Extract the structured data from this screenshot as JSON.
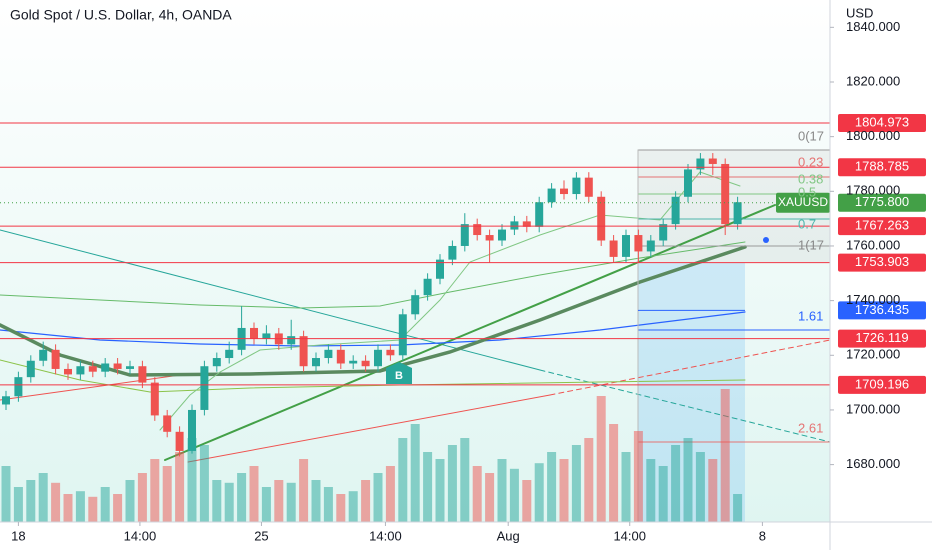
{
  "chart_data": {
    "type": "candlestick",
    "title": "Gold Spot / U.S. Dollar, 4h, OANDA",
    "y_axis_label": "USD",
    "ylim": [
      1659,
      1850
    ],
    "yticks": [
      {
        "value": 1680,
        "label": "1680.000"
      },
      {
        "value": 1700,
        "label": "1700.000"
      },
      {
        "value": 1720,
        "label": "1720.000"
      },
      {
        "value": 1740,
        "label": "1740.000"
      },
      {
        "value": 1760,
        "label": "1760.000"
      },
      {
        "value": 1780,
        "label": "1780.000"
      },
      {
        "value": 1800,
        "label": "1800.000"
      },
      {
        "value": 1820,
        "label": "1820.000"
      },
      {
        "value": 1840,
        "label": "1840.000"
      }
    ],
    "xticks": [
      {
        "value": 1,
        "label": "18"
      },
      {
        "value": 10.8,
        "label": "14:00"
      },
      {
        "value": 20.6,
        "label": "25"
      },
      {
        "value": 30.6,
        "label": "14:00"
      },
      {
        "value": 40.5,
        "label": "Aug"
      },
      {
        "value": 50.3,
        "label": "14:00"
      },
      {
        "value": 61,
        "label": "8"
      }
    ],
    "open": [
      1702,
      1705,
      1712,
      1718,
      1722,
      1715,
      1713,
      1716,
      1714,
      1717,
      1715,
      1716,
      1710,
      1698,
      1692,
      1685,
      1700,
      1716,
      1719,
      1722,
      1730,
      1726,
      1728,
      1724,
      1727,
      1716,
      1719,
      1722,
      1717,
      1718,
      1716,
      1722,
      1720,
      1735,
      1742,
      1748,
      1755,
      1760,
      1768,
      1764,
      1762,
      1766,
      1769,
      1767,
      1776,
      1781,
      1779,
      1785,
      1778,
      1762,
      1756,
      1764,
      1758,
      1762,
      1768,
      1778,
      1788,
      1792,
      1790,
      1768
    ],
    "high": [
      1707,
      1714,
      1720,
      1725,
      1724,
      1717,
      1718,
      1718,
      1719,
      1719,
      1718,
      1718,
      1712,
      1700,
      1694,
      1702,
      1718,
      1721,
      1725,
      1738,
      1732,
      1731,
      1730,
      1733,
      1729,
      1721,
      1724,
      1724,
      1720,
      1720,
      1724,
      1724,
      1737,
      1744,
      1750,
      1757,
      1762,
      1772,
      1770,
      1766,
      1768,
      1771,
      1771,
      1778,
      1783,
      1784,
      1787,
      1787,
      1780,
      1764,
      1766,
      1766,
      1764,
      1770,
      1780,
      1790,
      1794,
      1794,
      1792,
      1778
    ],
    "low": [
      1700,
      1703,
      1710,
      1716,
      1713,
      1711,
      1711,
      1712,
      1712,
      1713,
      1713,
      1708,
      1696,
      1690,
      1683,
      1684,
      1698,
      1714,
      1717,
      1720,
      1724,
      1724,
      1722,
      1722,
      1714,
      1714,
      1717,
      1715,
      1715,
      1714,
      1714,
      1718,
      1718,
      1733,
      1740,
      1746,
      1753,
      1758,
      1762,
      1754,
      1760,
      1764,
      1765,
      1765,
      1774,
      1777,
      1777,
      1776,
      1760,
      1754,
      1754,
      1754,
      1756,
      1760,
      1766,
      1776,
      1786,
      1786,
      1764,
      1766
    ],
    "close": [
      1705,
      1712,
      1718,
      1722,
      1715,
      1713,
      1716,
      1714,
      1717,
      1715,
      1716,
      1710,
      1698,
      1692,
      1685,
      1700,
      1716,
      1719,
      1722,
      1730,
      1726,
      1728,
      1724,
      1727,
      1716,
      1719,
      1722,
      1717,
      1718,
      1716,
      1722,
      1720,
      1735,
      1742,
      1748,
      1755,
      1760,
      1768,
      1764,
      1762,
      1766,
      1769,
      1767,
      1776,
      1781,
      1779,
      1785,
      1778,
      1762,
      1756,
      1764,
      1758,
      1762,
      1768,
      1778,
      1788,
      1792,
      1790,
      1768,
      1776
    ],
    "volume": [
      40,
      25,
      30,
      35,
      28,
      20,
      22,
      18,
      25,
      20,
      30,
      35,
      45,
      40,
      50,
      60,
      55,
      30,
      28,
      35,
      40,
      25,
      30,
      28,
      45,
      30,
      25,
      20,
      22,
      30,
      35,
      40,
      60,
      70,
      50,
      45,
      55,
      60,
      40,
      35,
      45,
      38,
      30,
      42,
      50,
      45,
      55,
      60,
      90,
      70,
      50,
      65,
      45,
      40,
      55,
      60,
      50,
      45,
      95,
      20
    ],
    "up_color": "#26a69a",
    "down_color": "#ef5350",
    "levels": [
      1804.973,
      1788.785,
      1767.263,
      1753.903,
      1726.119,
      1709.196
    ],
    "level_color": "#f23645",
    "blue_level": 1736.435,
    "current_price": {
      "value": 1775.8,
      "label": "1775.800"
    },
    "symbol": "XAUUSD",
    "signal_label": "B",
    "fib_labels": [
      "0(17",
      "0.23",
      "0.38",
      "0.5",
      "0.7",
      "1(17",
      "1.61",
      "2.61"
    ]
  }
}
